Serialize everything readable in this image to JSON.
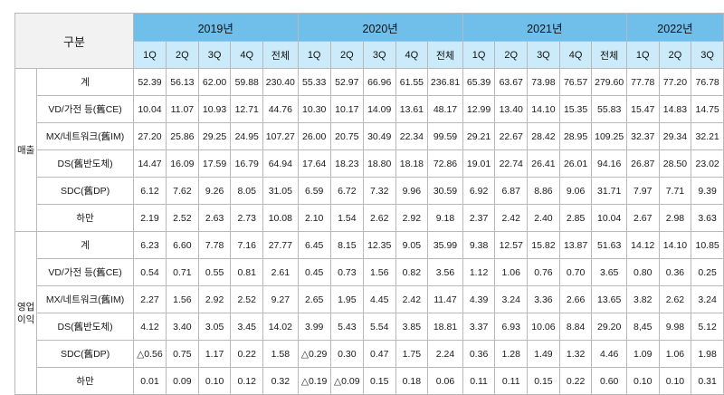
{
  "header": {
    "gubun": "구분",
    "years": [
      {
        "label": "2019년",
        "span": 5
      },
      {
        "label": "2020년",
        "span": 5
      },
      {
        "label": "2021년",
        "span": 5
      },
      {
        "label": "2022년",
        "span": 3
      }
    ],
    "quarters": [
      "1Q",
      "2Q",
      "3Q",
      "4Q",
      "전체",
      "1Q",
      "2Q",
      "3Q",
      "4Q",
      "전체",
      "1Q",
      "2Q",
      "3Q",
      "4Q",
      "전체",
      "1Q",
      "2Q",
      "3Q"
    ]
  },
  "sections": [
    {
      "name": "매출",
      "rows": [
        {
          "label": "계",
          "values": [
            "52.39",
            "56.13",
            "62.00",
            "59.88",
            "230.40",
            "55.33",
            "52.97",
            "66.96",
            "61.55",
            "236.81",
            "65.39",
            "63.67",
            "73.98",
            "76.57",
            "279.60",
            "77.78",
            "77.20",
            "76.78"
          ]
        },
        {
          "label": "VD/가전 등(舊CE)",
          "values": [
            "10.04",
            "11.07",
            "10.93",
            "12.71",
            "44.76",
            "10.30",
            "10.17",
            "14.09",
            "13.61",
            "48.17",
            "12.99",
            "13.40",
            "14.10",
            "15.35",
            "55.83",
            "15.47",
            "14.83",
            "14.75"
          ]
        },
        {
          "label": "MX/네트워크(舊IM)",
          "values": [
            "27.20",
            "25.86",
            "29.25",
            "24.95",
            "107.27",
            "26.00",
            "20.75",
            "30.49",
            "22.34",
            "99.59",
            "29.21",
            "22.67",
            "28.42",
            "28.95",
            "109.25",
            "32.37",
            "29.34",
            "32.21"
          ]
        },
        {
          "label": "DS(舊반도체)",
          "values": [
            "14.47",
            "16.09",
            "17.59",
            "16.79",
            "64.94",
            "17.64",
            "18.23",
            "18.80",
            "18.18",
            "72.86",
            "19.01",
            "22.74",
            "26.41",
            "26.01",
            "94.16",
            "26.87",
            "28.50",
            "23.02"
          ]
        },
        {
          "label": "SDC(舊DP)",
          "values": [
            "6.12",
            "7.62",
            "9.26",
            "8.05",
            "31.05",
            "6.59",
            "6.72",
            "7.32",
            "9.96",
            "30.59",
            "6.92",
            "6.87",
            "8.86",
            "9.06",
            "31.71",
            "7.97",
            "7.71",
            "9.39"
          ]
        },
        {
          "label": "하만",
          "values": [
            "2.19",
            "2.52",
            "2.63",
            "2.73",
            "10.08",
            "2.10",
            "1.54",
            "2.62",
            "2.92",
            "9.18",
            "2.37",
            "2.42",
            "2.40",
            "2.85",
            "10.04",
            "2.67",
            "2.98",
            "3.63"
          ]
        }
      ]
    },
    {
      "name": "영업\n이익",
      "rows": [
        {
          "label": "계",
          "values": [
            "6.23",
            "6.60",
            "7.78",
            "7.16",
            "27.77",
            "6.45",
            "8.15",
            "12.35",
            "9.05",
            "35.99",
            "9.38",
            "12.57",
            "15.82",
            "13.87",
            "51.63",
            "14.12",
            "14.10",
            "10.85"
          ]
        },
        {
          "label": "VD/가전 등(舊CE)",
          "values": [
            "0.54",
            "0.71",
            "0.55",
            "0.81",
            "2.61",
            "0.45",
            "0.73",
            "1.56",
            "0.82",
            "3.56",
            "1.12",
            "1.06",
            "0.76",
            "0.70",
            "3.65",
            "0.80",
            "0.36",
            "0.25"
          ]
        },
        {
          "label": "MX/네트워크(舊IM)",
          "values": [
            "2.27",
            "1.56",
            "2.92",
            "2.52",
            "9.27",
            "2.65",
            "1.95",
            "4.45",
            "2.42",
            "11.47",
            "4.39",
            "3.24",
            "3.36",
            "2.66",
            "13.65",
            "3.82",
            "2.62",
            "3.24"
          ]
        },
        {
          "label": "DS(舊반도체)",
          "values": [
            "4.12",
            "3.40",
            "3.05",
            "3.45",
            "14.02",
            "3.99",
            "5.43",
            "5.54",
            "3.85",
            "18.81",
            "3.37",
            "6.93",
            "10.06",
            "8.84",
            "29.20",
            "8,45",
            "9.98",
            "5.12"
          ]
        },
        {
          "label": "SDC(舊DP)",
          "values": [
            "△0.56",
            "0.75",
            "1.17",
            "0.22",
            "1.58",
            "△0.29",
            "0.30",
            "0.47",
            "1.75",
            "2.24",
            "0.36",
            "1.28",
            "1.49",
            "1.32",
            "4.46",
            "1.09",
            "1.06",
            "1.98"
          ]
        },
        {
          "label": "하만",
          "values": [
            "0.01",
            "0.09",
            "0.10",
            "0.12",
            "0.32",
            "△0.19",
            "△0.09",
            "0.15",
            "0.18",
            "0.06",
            "0.11",
            "0.11",
            "0.15",
            "0.22",
            "0.60",
            "0.10",
            "0.10",
            "0.31"
          ]
        }
      ]
    }
  ]
}
